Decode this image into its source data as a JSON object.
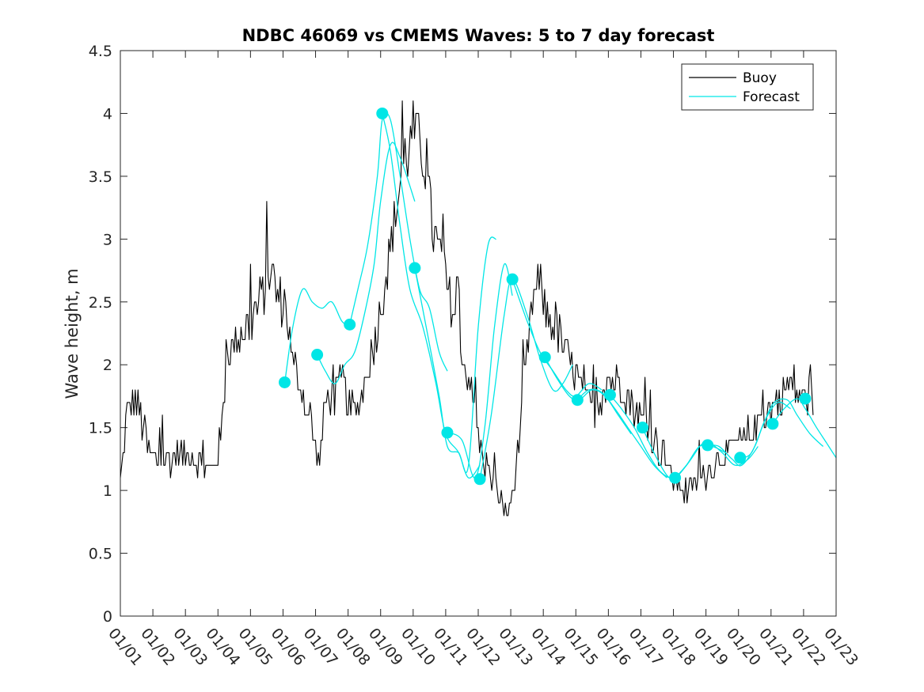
{
  "chart_data": {
    "type": "line",
    "title": "NDBC 46069 vs CMEMS Waves: 5 to 7 day forecast",
    "xlabel": "",
    "ylabel": "Wave height, m",
    "xlim": [
      0,
      22
    ],
    "ylim": [
      0,
      4.5
    ],
    "x_tick_labels": [
      "01/01",
      "01/02",
      "01/03",
      "01/04",
      "01/05",
      "01/06",
      "01/07",
      "01/08",
      "01/09",
      "01/10",
      "01/11",
      "01/12",
      "01/13",
      "01/14",
      "01/15",
      "01/16",
      "01/17",
      "01/18",
      "01/19",
      "01/20",
      "01/21",
      "01/22",
      "01/23"
    ],
    "y_ticks": [
      0,
      0.5,
      1,
      1.5,
      2,
      2.5,
      3,
      3.5,
      4,
      4.5
    ],
    "y_tick_labels": [
      "0",
      "0.5",
      "1",
      "1.5",
      "2",
      "2.5",
      "3",
      "3.5",
      "4",
      "4.5"
    ],
    "legend": {
      "position": "top-right",
      "entries": [
        "Buoy",
        "Forecast"
      ]
    },
    "colors": {
      "buoy": "#000000",
      "forecast": "#00e6e6",
      "marker": "#00e6e6"
    },
    "buoy_anchor_points": [
      [
        0,
        1.05
      ],
      [
        0.2,
        1.6
      ],
      [
        0.5,
        1.7
      ],
      [
        0.7,
        1.5
      ],
      [
        0.9,
        1.25
      ],
      [
        1.5,
        1.25
      ],
      [
        2.0,
        1.3
      ],
      [
        2.4,
        1.25
      ],
      [
        2.6,
        1.15
      ],
      [
        2.9,
        1.2
      ],
      [
        3.1,
        1.45
      ],
      [
        3.3,
        2.1
      ],
      [
        3.6,
        2.2
      ],
      [
        3.9,
        2.3
      ],
      [
        4.2,
        2.45
      ],
      [
        4.45,
        2.6
      ],
      [
        4.6,
        2.8
      ],
      [
        4.9,
        2.5
      ],
      [
        5.1,
        2.5
      ],
      [
        5.3,
        2.0
      ],
      [
        5.6,
        1.8
      ],
      [
        5.9,
        1.5
      ],
      [
        6.1,
        1.2
      ],
      [
        6.3,
        1.7
      ],
      [
        6.6,
        1.75
      ],
      [
        6.8,
        1.9
      ],
      [
        7.0,
        1.7
      ],
      [
        7.2,
        1.6
      ],
      [
        7.5,
        1.85
      ],
      [
        7.8,
        2.2
      ],
      [
        8.1,
        2.6
      ],
      [
        8.4,
        3.1
      ],
      [
        8.7,
        3.6
      ],
      [
        9.0,
        3.85
      ],
      [
        9.3,
        3.7
      ],
      [
        9.6,
        3.1
      ],
      [
        9.9,
        2.8
      ],
      [
        10.2,
        2.5
      ],
      [
        10.4,
        2.2
      ],
      [
        10.7,
        1.9
      ],
      [
        10.9,
        1.6
      ],
      [
        11.1,
        1.3
      ],
      [
        11.4,
        1.1
      ],
      [
        11.7,
        0.9
      ],
      [
        11.9,
        0.8
      ],
      [
        12.1,
        1.0
      ],
      [
        12.3,
        1.5
      ],
      [
        12.5,
        2.1
      ],
      [
        12.7,
        2.55
      ],
      [
        12.9,
        2.65
      ],
      [
        13.1,
        2.4
      ],
      [
        13.4,
        2.3
      ],
      [
        13.7,
        2.1
      ],
      [
        14.0,
        1.95
      ],
      [
        14.3,
        1.7
      ],
      [
        14.6,
        1.6
      ],
      [
        14.9,
        1.85
      ],
      [
        15.1,
        1.9
      ],
      [
        15.4,
        1.85
      ],
      [
        15.6,
        1.75
      ],
      [
        15.9,
        1.6
      ],
      [
        16.2,
        1.55
      ],
      [
        16.5,
        1.35
      ],
      [
        16.8,
        1.2
      ],
      [
        17.1,
        1.05
      ],
      [
        17.4,
        1.0
      ],
      [
        17.7,
        1.05
      ],
      [
        18.0,
        1.15
      ],
      [
        18.3,
        1.25
      ],
      [
        18.6,
        1.3
      ],
      [
        18.9,
        1.35
      ],
      [
        19.2,
        1.4
      ],
      [
        19.5,
        1.5
      ],
      [
        19.8,
        1.6
      ],
      [
        20.1,
        1.7
      ],
      [
        20.4,
        1.8
      ],
      [
        20.7,
        1.85
      ],
      [
        20.9,
        1.75
      ],
      [
        21.1,
        1.75
      ],
      [
        21.3,
        1.7
      ]
    ],
    "forecast_segments": [
      [
        [
          5.05,
          1.85
        ],
        [
          5.3,
          2.3
        ],
        [
          5.6,
          2.6
        ],
        [
          5.9,
          2.5
        ],
        [
          6.2,
          2.45
        ],
        [
          6.5,
          2.5
        ],
        [
          6.8,
          2.35
        ],
        [
          7.05,
          2.3
        ]
      ],
      [
        [
          6.05,
          2.08
        ],
        [
          6.3,
          1.95
        ],
        [
          6.6,
          1.85
        ],
        [
          6.9,
          2.0
        ],
        [
          7.2,
          2.1
        ],
        [
          7.5,
          2.4
        ],
        [
          7.8,
          2.8
        ],
        [
          8.0,
          3.3
        ],
        [
          8.3,
          3.75
        ],
        [
          8.6,
          3.65
        ],
        [
          9.05,
          3.3
        ]
      ],
      [
        [
          7.05,
          2.32
        ],
        [
          7.3,
          2.6
        ],
        [
          7.6,
          2.95
        ],
        [
          7.9,
          3.5
        ],
        [
          8.05,
          3.95
        ],
        [
          8.3,
          3.95
        ],
        [
          8.6,
          3.5
        ],
        [
          8.9,
          3.0
        ],
        [
          9.2,
          2.6
        ],
        [
          9.5,
          2.45
        ],
        [
          9.8,
          2.1
        ],
        [
          10.05,
          1.95
        ]
      ],
      [
        [
          8.05,
          4.0
        ],
        [
          8.3,
          3.7
        ],
        [
          8.6,
          3.1
        ],
        [
          8.9,
          2.6
        ],
        [
          9.3,
          2.3
        ],
        [
          9.7,
          1.85
        ],
        [
          10.0,
          1.45
        ],
        [
          10.4,
          1.3
        ],
        [
          10.7,
          1.1
        ],
        [
          11.05,
          1.2
        ]
      ],
      [
        [
          9.05,
          2.77
        ],
        [
          9.4,
          2.3
        ],
        [
          9.8,
          1.75
        ],
        [
          10.05,
          1.35
        ],
        [
          10.4,
          1.3
        ],
        [
          10.7,
          1.2
        ],
        [
          11.0,
          2.3
        ],
        [
          11.3,
          2.95
        ],
        [
          11.55,
          3.0
        ]
      ],
      [
        [
          10.05,
          1.46
        ],
        [
          10.5,
          1.4
        ],
        [
          10.9,
          1.1
        ],
        [
          11.2,
          1.5
        ],
        [
          11.5,
          2.3
        ],
        [
          11.8,
          2.8
        ],
        [
          12.05,
          2.55
        ]
      ],
      [
        [
          11.05,
          1.09
        ],
        [
          11.4,
          1.6
        ],
        [
          11.8,
          2.4
        ],
        [
          12.05,
          2.68
        ],
        [
          12.5,
          2.4
        ],
        [
          12.9,
          2.05
        ],
        [
          13.3,
          1.8
        ],
        [
          13.6,
          1.85
        ],
        [
          13.9,
          2.0
        ]
      ],
      [
        [
          12.05,
          2.68
        ],
        [
          12.5,
          2.35
        ],
        [
          12.9,
          2.1
        ],
        [
          13.3,
          1.95
        ],
        [
          13.7,
          1.8
        ],
        [
          14.0,
          1.75
        ],
        [
          14.4,
          1.85
        ],
        [
          14.8,
          1.8
        ]
      ],
      [
        [
          13.05,
          2.06
        ],
        [
          13.4,
          1.9
        ],
        [
          13.8,
          1.75
        ],
        [
          14.1,
          1.72
        ],
        [
          14.5,
          1.8
        ],
        [
          14.9,
          1.75
        ],
        [
          15.3,
          1.6
        ],
        [
          15.7,
          1.45
        ]
      ],
      [
        [
          14.05,
          1.72
        ],
        [
          14.4,
          1.8
        ],
        [
          14.8,
          1.78
        ],
        [
          15.2,
          1.65
        ],
        [
          15.6,
          1.5
        ],
        [
          16.0,
          1.35
        ],
        [
          16.4,
          1.2
        ],
        [
          16.8,
          1.1
        ]
      ],
      [
        [
          15.05,
          1.76
        ],
        [
          15.4,
          1.65
        ],
        [
          15.8,
          1.5
        ],
        [
          16.2,
          1.3
        ],
        [
          16.6,
          1.15
        ],
        [
          17.0,
          1.1
        ],
        [
          17.4,
          1.2
        ],
        [
          17.8,
          1.35
        ]
      ],
      [
        [
          16.05,
          1.5
        ],
        [
          16.4,
          1.3
        ],
        [
          16.8,
          1.12
        ],
        [
          17.05,
          1.1
        ],
        [
          17.4,
          1.2
        ],
        [
          17.8,
          1.35
        ],
        [
          18.2,
          1.35
        ],
        [
          18.6,
          1.3
        ]
      ],
      [
        [
          17.05,
          1.1
        ],
        [
          17.4,
          1.2
        ],
        [
          17.8,
          1.35
        ],
        [
          18.1,
          1.38
        ],
        [
          18.5,
          1.3
        ],
        [
          18.9,
          1.2
        ],
        [
          19.3,
          1.25
        ],
        [
          19.6,
          1.35
        ]
      ],
      [
        [
          18.05,
          1.36
        ],
        [
          18.4,
          1.35
        ],
        [
          18.8,
          1.25
        ],
        [
          19.1,
          1.2
        ],
        [
          19.5,
          1.35
        ],
        [
          19.8,
          1.55
        ],
        [
          20.2,
          1.7
        ],
        [
          20.6,
          1.65
        ]
      ],
      [
        [
          19.05,
          1.26
        ],
        [
          19.4,
          1.3
        ],
        [
          19.8,
          1.55
        ],
        [
          20.1,
          1.7
        ],
        [
          20.5,
          1.72
        ],
        [
          20.8,
          1.6
        ],
        [
          21.2,
          1.45
        ],
        [
          21.6,
          1.35
        ]
      ],
      [
        [
          20.05,
          1.53
        ],
        [
          20.4,
          1.65
        ],
        [
          20.8,
          1.73
        ],
        [
          21.05,
          1.65
        ],
        [
          21.4,
          1.5
        ],
        [
          21.7,
          1.38
        ],
        [
          22.0,
          1.26
        ]
      ]
    ],
    "init_markers": [
      [
        5.05,
        1.86
      ],
      [
        6.05,
        2.08
      ],
      [
        7.05,
        2.32
      ],
      [
        8.05,
        4.0
      ],
      [
        9.05,
        2.77
      ],
      [
        10.05,
        1.46
      ],
      [
        11.05,
        1.09
      ],
      [
        12.05,
        2.68
      ],
      [
        13.05,
        2.06
      ],
      [
        14.05,
        1.72
      ],
      [
        15.05,
        1.76
      ],
      [
        16.05,
        1.5
      ],
      [
        17.05,
        1.1
      ],
      [
        18.05,
        1.36
      ],
      [
        19.05,
        1.26
      ],
      [
        20.05,
        1.53
      ],
      [
        21.05,
        1.73
      ]
    ]
  }
}
